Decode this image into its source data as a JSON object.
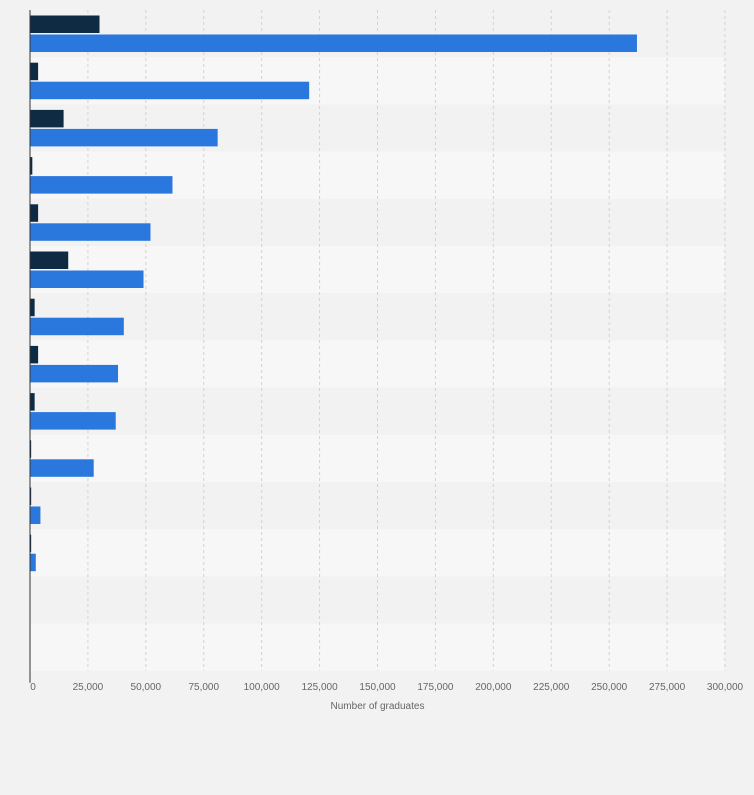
{
  "chart_data": {
    "type": "bar",
    "orientation": "horizontal",
    "categories": [
      "",
      "",
      "",
      "",
      "",
      "",
      "",
      "",
      "",
      "",
      "",
      "",
      "",
      ""
    ],
    "series": [
      {
        "color": "#0f2a43",
        "values": [
          30000,
          3500,
          14500,
          1000,
          3500,
          16500,
          2000,
          3500,
          2000,
          500,
          500,
          500,
          0,
          0
        ]
      },
      {
        "color": "#2a78de",
        "values": [
          262000,
          120500,
          81000,
          61500,
          52000,
          49000,
          40500,
          38000,
          37000,
          27500,
          4500,
          2500,
          0,
          0
        ]
      }
    ],
    "xlim": [
      0,
      300000
    ],
    "xticks": [
      "0",
      "25,000",
      "50,000",
      "75,000",
      "100,000",
      "125,000",
      "150,000",
      "175,000",
      "200,000",
      "225,000",
      "250,000",
      "275,000",
      "300,000"
    ],
    "xlabel": "Number of graduates",
    "ylabel": "",
    "title": "",
    "grid": true,
    "legend": "none"
  },
  "colors": {
    "band_light": "#f7f7f7",
    "band_dark": "#f2f2f2",
    "gridline": "#d2d2d2",
    "axis": "#333333",
    "tick_text": "#666666"
  }
}
